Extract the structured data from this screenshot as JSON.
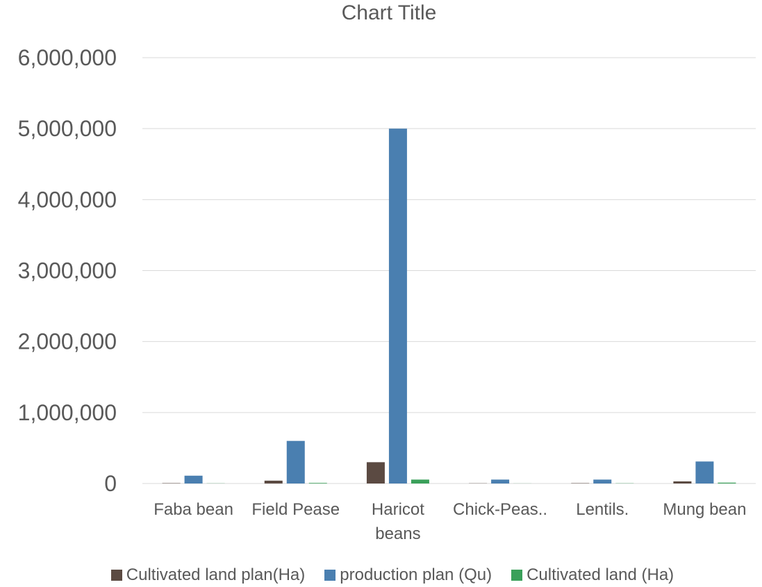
{
  "chart_data": {
    "type": "bar",
    "title": "Chart Title",
    "categories": [
      "Faba bean",
      "Field Pease",
      "Haricot beans",
      "Chick-Peas..",
      "Lentils.",
      "Mung bean"
    ],
    "category_lines": [
      [
        "Faba bean"
      ],
      [
        "Field Pease"
      ],
      [
        "Haricot",
        "beans"
      ],
      [
        "Chick-Peas.."
      ],
      [
        "Lentils."
      ],
      [
        "Mung bean"
      ]
    ],
    "series": [
      {
        "name": "Cultivated land plan(Ha)",
        "color": "#5b4a42",
        "values": [
          5000,
          40000,
          300000,
          3000,
          5000,
          30000
        ]
      },
      {
        "name": "production plan (Qu)",
        "color": "#4a7fb0",
        "values": [
          110000,
          600000,
          5000000,
          55000,
          55000,
          310000
        ]
      },
      {
        "name": "Cultivated land (Ha)",
        "color": "#3aa05a",
        "values": [
          2000,
          8000,
          55000,
          1000,
          3000,
          12000
        ]
      }
    ],
    "ylim": [
      0,
      6000000
    ],
    "yticks": [
      0,
      1000000,
      2000000,
      3000000,
      4000000,
      5000000,
      6000000
    ],
    "ytick_labels": [
      "0",
      "1,000,000",
      "2,000,000",
      "3,000,000",
      "4,000,000",
      "5,000,000",
      "6,000,000"
    ],
    "grid": true,
    "legend_position": "bottom",
    "gridline_color": "#d9d9d9"
  }
}
